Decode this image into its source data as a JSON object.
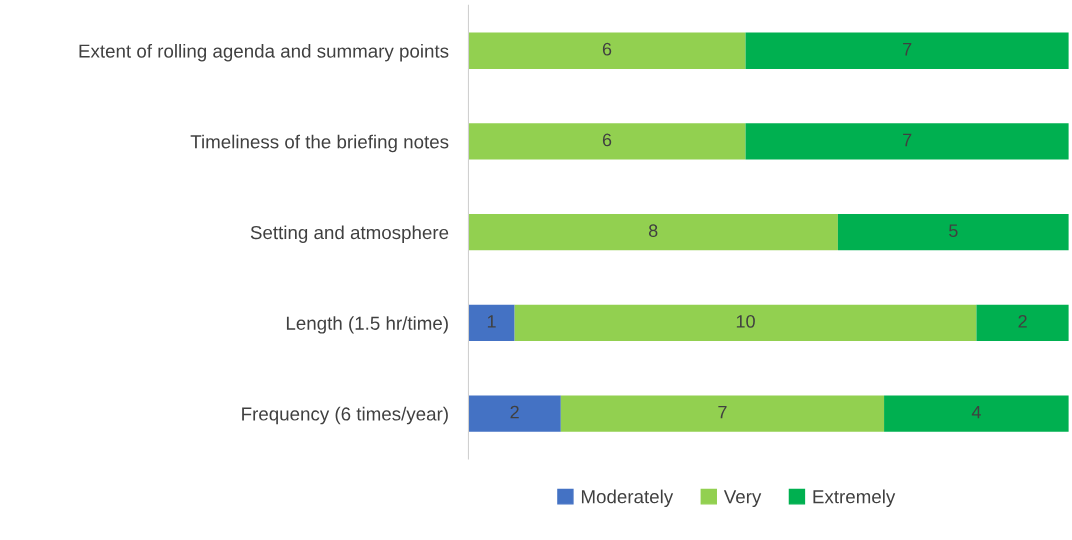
{
  "chart_data": {
    "type": "bar",
    "orientation": "horizontal",
    "stacked": true,
    "data_labels": true,
    "legend": "bottom",
    "grid": false,
    "categories": [
      "Extent of rolling agenda and summary points",
      "Timeliness of the briefing notes",
      "Setting and atmosphere",
      "Length (1.5 hr/time)",
      "Frequency (6 times/year)"
    ],
    "series": [
      {
        "name": "Moderately",
        "color": "#4472c4",
        "values": [
          null,
          null,
          null,
          1,
          2
        ]
      },
      {
        "name": "Very",
        "color": "#92d050",
        "values": [
          6,
          6,
          8,
          10,
          7
        ]
      },
      {
        "name": "Extremely",
        "color": "#00b050",
        "values": [
          7,
          7,
          5,
          2,
          4
        ]
      }
    ]
  }
}
